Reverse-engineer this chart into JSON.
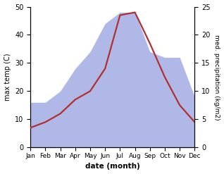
{
  "months": [
    "Jan",
    "Feb",
    "Mar",
    "Apr",
    "May",
    "Jun",
    "Jul",
    "Aug",
    "Sep",
    "Oct",
    "Nov",
    "Dec"
  ],
  "temperature": [
    7,
    9,
    12,
    17,
    20,
    28,
    47,
    48,
    37,
    25,
    15,
    9
  ],
  "precipitation": [
    8,
    8,
    10,
    14,
    17,
    22,
    24,
    24,
    17,
    16,
    16,
    9
  ],
  "temp_color": "#b03030",
  "precip_color": "#b0b8e8",
  "temp_ylim": [
    0,
    50
  ],
  "precip_ylim": [
    0,
    25
  ],
  "xlabel": "date (month)",
  "ylabel_left": "max temp (C)",
  "ylabel_right": "med. precipitation (kg/m2)",
  "bg_color": "#ffffff",
  "line_width": 1.6,
  "figsize": [
    3.18,
    2.47
  ],
  "dpi": 100
}
